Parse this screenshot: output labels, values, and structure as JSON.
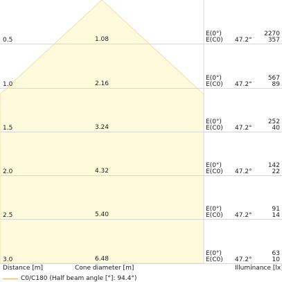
{
  "chart_data": {
    "type": "table",
    "rows": [
      {
        "distance": "0.5",
        "cone_diameter": "1.08",
        "e0_label": "E(0°)",
        "ec0_label": "E(C0)",
        "angle": "47.2°",
        "e0": "2270",
        "ec0": "357"
      },
      {
        "distance": "1.0",
        "cone_diameter": "2.16",
        "e0_label": "E(0°)",
        "ec0_label": "E(C0)",
        "angle": "47.2°",
        "e0": "567",
        "ec0": "89"
      },
      {
        "distance": "1.5",
        "cone_diameter": "3.24",
        "e0_label": "E(0°)",
        "ec0_label": "E(C0)",
        "angle": "47.2°",
        "e0": "252",
        "ec0": "40"
      },
      {
        "distance": "2.0",
        "cone_diameter": "4.32",
        "e0_label": "E(0°)",
        "ec0_label": "E(C0)",
        "angle": "47.2°",
        "e0": "142",
        "ec0": "22"
      },
      {
        "distance": "2.5",
        "cone_diameter": "5.40",
        "e0_label": "E(0°)",
        "ec0_label": "E(C0)",
        "angle": "47.2°",
        "e0": "91",
        "ec0": "14"
      },
      {
        "distance": "3.0",
        "cone_diameter": "6.48",
        "e0_label": "E(0°)",
        "ec0_label": "E(C0)",
        "angle": "47.2°",
        "e0": "63",
        "ec0": "10"
      }
    ],
    "xlabel_left": "Distance [m]",
    "xlabel_mid": "Cone diameter [m]",
    "xlabel_right": "Illuminance [lx]",
    "legend": "C0/C180 (Half beam angle [°]: 94.4°)",
    "colors": {
      "cone_fill": "#fdfbdc",
      "cone_stroke": "#f2dfae",
      "grid": "#d8d8d8",
      "legend_line": "#f5b264"
    }
  }
}
